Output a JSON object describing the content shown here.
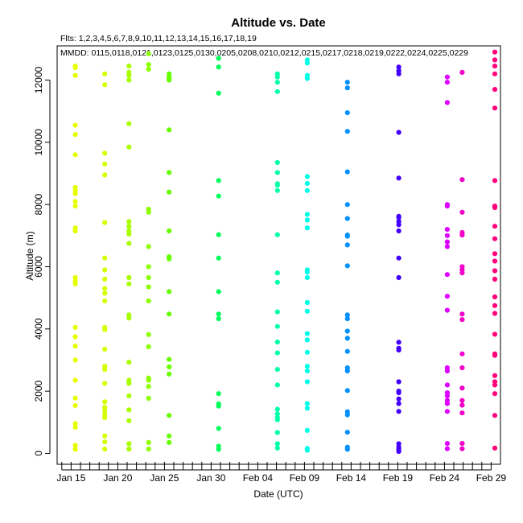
{
  "chart_data": {
    "type": "scatter",
    "title": "Altitude  vs. Date",
    "subtitle": "Flts: 1,2,3,4,5,6,7,8,9,10,11,12,13,14,15,16,17,18,19",
    "header_prefix": "MMDD:",
    "xlabel": "Date (UTC)",
    "ylabel": "Altitude (m)",
    "x_units": "day of year 2020 (1 = Jan 1)",
    "xlim": [
      13.5,
      61
    ],
    "ylim": [
      -350,
      13100
    ],
    "yticks": [
      0,
      2000,
      4000,
      6000,
      8000,
      10000,
      12000
    ],
    "xticks_major": [
      {
        "x": 15,
        "label": "Jan 15"
      },
      {
        "x": 20,
        "label": "Jan 20"
      },
      {
        "x": 25,
        "label": "Jan 25"
      },
      {
        "x": 30,
        "label": "Jan 30"
      },
      {
        "x": 35,
        "label": "Feb 04"
      },
      {
        "x": 40,
        "label": "Feb 09"
      },
      {
        "x": 45,
        "label": "Feb 14"
      },
      {
        "x": 50,
        "label": "Feb 19"
      },
      {
        "x": 55,
        "label": "Feb 24"
      },
      {
        "x": 60,
        "label": "Feb 29"
      }
    ],
    "xtick_minor_start": 14,
    "xtick_minor_end": 60,
    "flight_dates": [
      {
        "x": 15,
        "label": "0115"
      },
      {
        "x": 18,
        "label": "0118"
      },
      {
        "x": 21,
        "label": "0121"
      },
      {
        "x": 23,
        "label": "0123"
      },
      {
        "x": 25,
        "label": "0125"
      },
      {
        "x": 30,
        "label": "0130"
      },
      {
        "x": 36,
        "label": "0205"
      },
      {
        "x": 39,
        "label": "0208"
      },
      {
        "x": 41,
        "label": "0210"
      },
      {
        "x": 43,
        "label": "0212"
      },
      {
        "x": 46,
        "label": "0215"
      },
      {
        "x": 48,
        "label": "0217"
      },
      {
        "x": 49,
        "label": "0218"
      },
      {
        "x": 50,
        "label": "0219"
      },
      {
        "x": 53,
        "label": "0222"
      },
      {
        "x": 55,
        "label": "0224"
      },
      {
        "x": 56,
        "label": "0225"
      },
      {
        "x": 60,
        "label": "0229"
      }
    ],
    "grid": false,
    "legend": "none",
    "series": [
      {
        "color": "#E6FF00",
        "x": 15.45,
        "y": [
          130,
          260,
          840,
          960,
          1540,
          1780,
          2350,
          3000,
          3450,
          3750,
          4050,
          5450,
          5550,
          5650,
          7150,
          7250,
          7950,
          8100,
          8350,
          8450,
          8550,
          9600,
          10250,
          10550,
          12150,
          12400,
          12450
        ]
      },
      {
        "color": "#D4FF00",
        "x": 18.6,
        "y": [
          140,
          370,
          560,
          1150,
          1250,
          1380,
          1480,
          1660,
          2250,
          2700,
          2800,
          3350,
          3980,
          4050,
          4900,
          5150,
          5300,
          5600,
          5900,
          6280,
          7420,
          8950,
          9300,
          9650,
          11850,
          12200
        ]
      },
      {
        "color": "#A8FF00",
        "x": 21.2,
        "y": [
          140,
          310,
          1050,
          1400,
          1850,
          2250,
          2350,
          2930,
          4350,
          4450,
          5450,
          5650,
          6750,
          7050,
          7150,
          7300,
          7450,
          9850,
          10600,
          12000,
          12150,
          12250,
          12450
        ]
      },
      {
        "color": "#8CFF00",
        "x": 23.3,
        "y": [
          140,
          350,
          1770,
          2150,
          2350,
          2420,
          3430,
          3820,
          4900,
          5350,
          5650,
          6000,
          6650,
          7750,
          7850,
          12350,
          12500,
          12850
        ]
      },
      {
        "color": "#66FF00",
        "x": 25.5,
        "y": [
          350,
          560,
          1220,
          2550,
          2780,
          3020,
          4480,
          5200,
          6250,
          6320,
          7150,
          8400,
          9030,
          10400,
          12000,
          12050,
          12100,
          12200
        ]
      },
      {
        "color": "#00FF5A",
        "x": 30.8,
        "y": [
          130,
          230,
          800,
          1520,
          1590,
          1920,
          4330,
          4480,
          5200,
          6280,
          7030,
          8270,
          8770,
          11580,
          12420,
          12700
        ]
      },
      {
        "color": "#00FFA8",
        "x": 37.1,
        "y": [
          170,
          310,
          670,
          1080,
          1150,
          1270,
          1420,
          2200,
          2700,
          3230,
          3580,
          4080,
          4550,
          5500,
          5800,
          7030,
          8450,
          8620,
          8670,
          9030,
          9350,
          11630,
          11930,
          12100,
          12200
        ]
      },
      {
        "color": "#00FFE6",
        "x": 40.3,
        "y": [
          100,
          160,
          740,
          1450,
          1600,
          2300,
          2650,
          2800,
          3250,
          3650,
          3850,
          4570,
          4850,
          5650,
          5830,
          5900,
          7250,
          7500,
          7680,
          8450,
          8680,
          8900,
          12050,
          12150,
          12550,
          12650
        ]
      },
      {
        "color": "#0090FF",
        "x": 44.6,
        "y": [
          130,
          200,
          680,
          1240,
          1340,
          2020,
          2650,
          2750,
          3280,
          3700,
          3930,
          4330,
          4450,
          6030,
          6700,
          6980,
          7020,
          7550,
          8000,
          9050,
          10350,
          10950,
          11750,
          11930
        ]
      },
      {
        "color": "#4400FF",
        "x": 50.1,
        "y": [
          60,
          130,
          200,
          310,
          1350,
          1600,
          1750,
          1950,
          2000,
          2300,
          3320,
          3380,
          3570,
          5650,
          6280,
          7150,
          7350,
          7450,
          7580,
          7620,
          8850,
          10320,
          12200,
          12300,
          12420
        ]
      },
      {
        "color": "#DD00FF",
        "x": 55.3,
        "y": [
          150,
          320,
          1350,
          1600,
          1700,
          1850,
          1950,
          2200,
          2650,
          2750,
          4600,
          5050,
          5750,
          6650,
          6800,
          7000,
          7200,
          7950,
          8000,
          11280,
          11930,
          12100
        ]
      },
      {
        "color": "#F000C8",
        "x": 56.9,
        "y": [
          150,
          320,
          1300,
          1550,
          1700,
          2100,
          2750,
          3200,
          4300,
          4480,
          5800,
          5900,
          6000,
          7020,
          7100,
          7750,
          8800,
          12250
        ]
      },
      {
        "color": "#FF007A",
        "x": 60.4,
        "y": [
          170,
          1220,
          1920,
          2200,
          2300,
          2500,
          3150,
          3200,
          3830,
          4500,
          4750,
          5030,
          5600,
          5870,
          6180,
          6420,
          6900,
          7300,
          7900,
          7950,
          8770,
          11100,
          11700,
          12200,
          12450,
          12650,
          12900
        ]
      }
    ]
  }
}
